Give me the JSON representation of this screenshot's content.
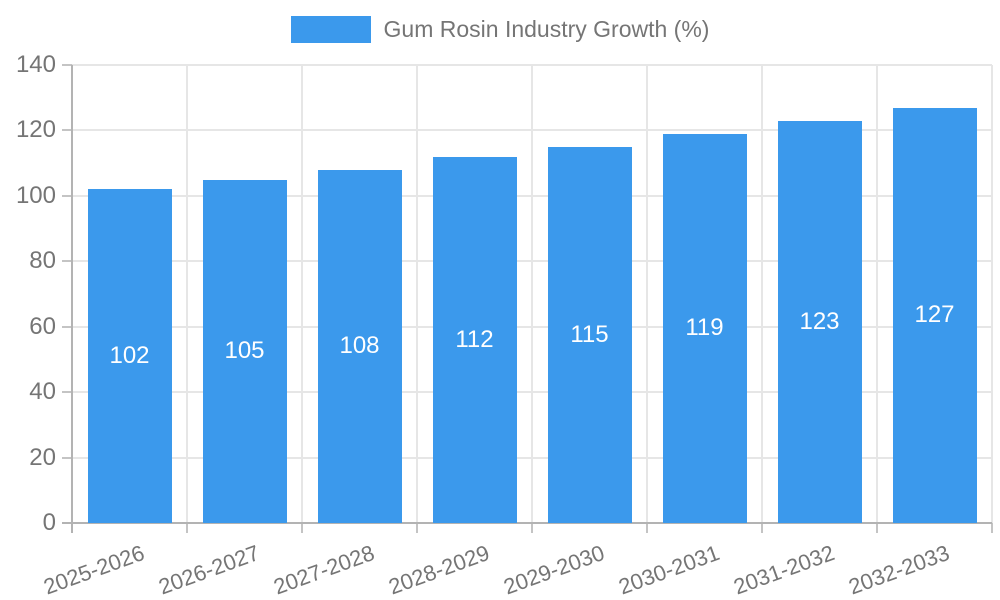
{
  "chart_data": {
    "type": "bar",
    "legend": "Gum Rosin Industry Growth (%)",
    "legend_position": "top",
    "categories": [
      "2025-2026",
      "2026-2027",
      "2027-2028",
      "2028-2029",
      "2029-2030",
      "2030-2031",
      "2031-2032",
      "2032-2033"
    ],
    "values": [
      102,
      105,
      108,
      112,
      115,
      119,
      123,
      127
    ],
    "value_labels": [
      "102",
      "105",
      "108",
      "112",
      "115",
      "119",
      "123",
      "127"
    ],
    "yticks": [
      0,
      20,
      40,
      60,
      80,
      100,
      120,
      140
    ],
    "ylim": [
      0,
      140
    ],
    "grid": true,
    "colors": {
      "bar": "#3B99EC",
      "bar_label": "#FFFFFF",
      "tick_label": "#757575",
      "legend_text": "#757575",
      "grid": "#E6E6E6",
      "axis": "#B3B3B3",
      "tick_mark": "#C4C4C4",
      "background": "#FFFFFF"
    }
  }
}
